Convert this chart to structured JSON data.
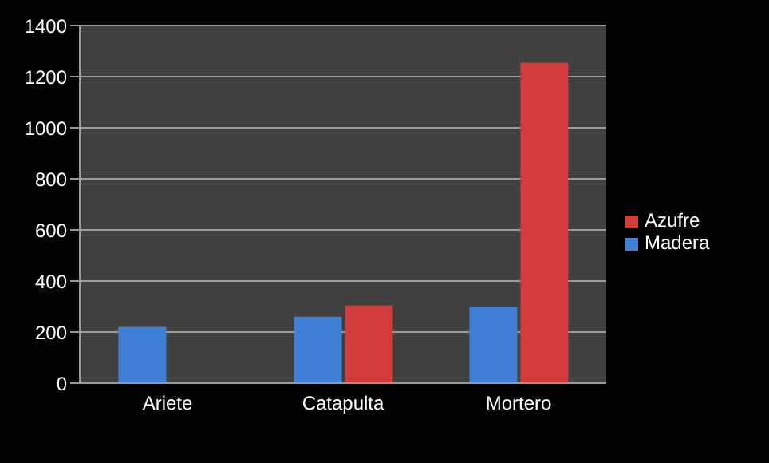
{
  "chart_data": {
    "type": "bar",
    "categories": [
      "Ariete",
      "Catapulta",
      "Mortero"
    ],
    "series": [
      {
        "name": "Madera",
        "color": "#3f7fd6",
        "values": [
          220,
          260,
          300
        ]
      },
      {
        "name": "Azufre",
        "color": "#d43c3c",
        "values": [
          null,
          305,
          1255
        ]
      }
    ],
    "ylim": [
      0,
      1400
    ],
    "yticks": [
      0,
      200,
      400,
      600,
      800,
      1000,
      1200,
      1400
    ],
    "grid": "y",
    "legend": "right"
  }
}
